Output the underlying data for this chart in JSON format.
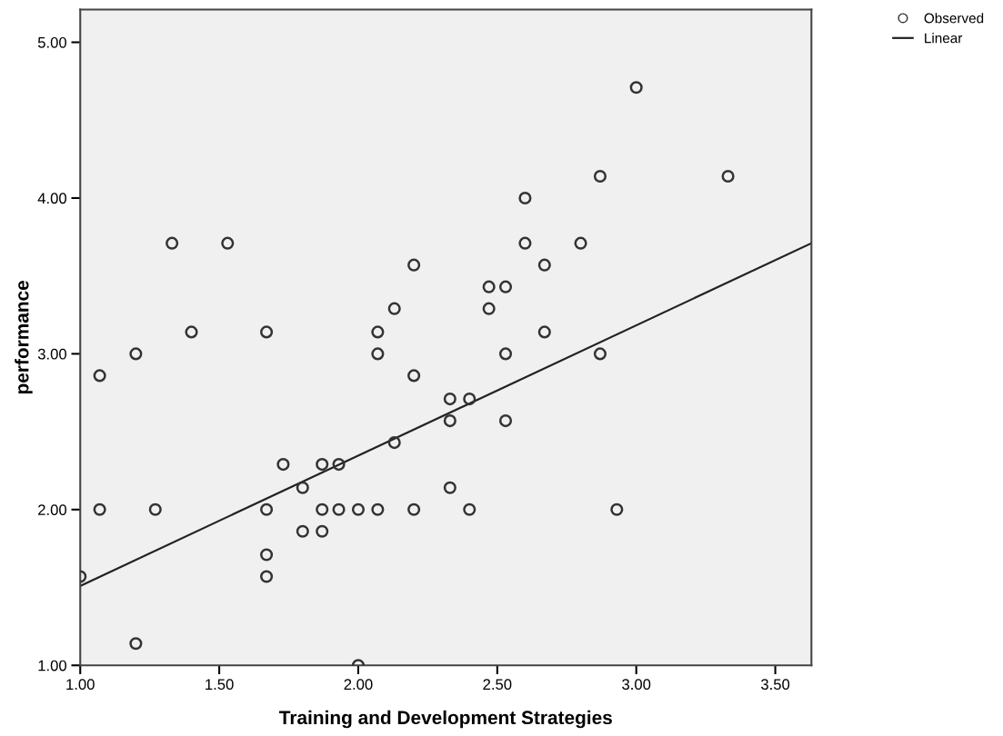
{
  "chart_data": {
    "type": "scatter",
    "xlabel": "Training and Development Strategies",
    "ylabel": "performance",
    "xlim": [
      1.0,
      3.63
    ],
    "ylim": [
      1.0,
      5.21
    ],
    "xticks": [
      {
        "value": 1.0,
        "label": "1.00"
      },
      {
        "value": 1.5,
        "label": "1.50"
      },
      {
        "value": 2.0,
        "label": "2.00"
      },
      {
        "value": 2.5,
        "label": "2.50"
      },
      {
        "value": 3.0,
        "label": "3.00"
      },
      {
        "value": 3.5,
        "label": "3.50"
      }
    ],
    "yticks": [
      {
        "value": 1.0,
        "label": "1.00"
      },
      {
        "value": 2.0,
        "label": "2.00"
      },
      {
        "value": 3.0,
        "label": "3.00"
      },
      {
        "value": 4.0,
        "label": "4.00"
      },
      {
        "value": 5.0,
        "label": "5.00"
      }
    ],
    "grid": false,
    "legend": "top right",
    "series": [
      {
        "name": "Observed",
        "marker": "circle",
        "color": "#333333",
        "x": [
          1.0,
          1.07,
          1.07,
          1.2,
          1.2,
          1.27,
          1.33,
          1.53,
          1.4,
          1.67,
          1.67,
          1.67,
          1.67,
          1.73,
          1.8,
          1.8,
          1.87,
          1.87,
          1.87,
          1.93,
          1.93,
          2.0,
          2.0,
          2.07,
          2.07,
          2.07,
          2.13,
          2.13,
          2.2,
          2.2,
          2.2,
          2.33,
          2.33,
          2.33,
          2.4,
          2.4,
          2.47,
          2.47,
          2.53,
          2.53,
          2.53,
          2.6,
          2.6,
          2.67,
          2.67,
          2.8,
          2.87,
          2.87,
          2.93,
          3.0,
          3.33
        ],
        "values": [
          1.57,
          2.86,
          2.0,
          3.0,
          1.14,
          2.0,
          3.71,
          3.71,
          3.14,
          3.14,
          2.0,
          1.71,
          1.57,
          2.29,
          2.14,
          1.86,
          2.29,
          2.0,
          1.86,
          2.29,
          2.0,
          2.0,
          1.0,
          2.0,
          3.14,
          3.0,
          3.29,
          2.43,
          3.57,
          2.86,
          2.0,
          2.71,
          2.57,
          2.14,
          2.71,
          2.0,
          3.43,
          3.29,
          3.43,
          3.0,
          2.57,
          4.0,
          3.71,
          3.57,
          3.14,
          3.71,
          4.14,
          3.0,
          2.0,
          4.71,
          4.14
        ]
      },
      {
        "name": "Linear",
        "type": "line",
        "marker": "none",
        "line_style": "solid",
        "color": "#222222",
        "x": [
          1.0,
          3.63
        ],
        "values": [
          1.51,
          3.71
        ]
      }
    ]
  }
}
